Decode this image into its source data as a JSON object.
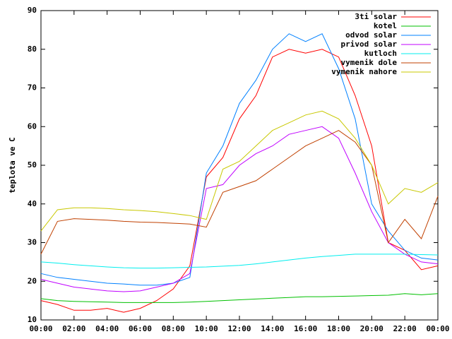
{
  "chart_data": {
    "type": "line",
    "ylabel": "teplota ve C",
    "x": [
      0,
      1,
      2,
      3,
      4,
      5,
      6,
      7,
      8,
      9,
      10,
      11,
      12,
      13,
      14,
      15,
      16,
      17,
      18,
      19,
      20,
      21,
      22,
      23,
      24
    ],
    "xlim": [
      0,
      24
    ],
    "xticks": [
      {
        "value": 0,
        "label": "00:00"
      },
      {
        "value": 2,
        "label": "02:00"
      },
      {
        "value": 4,
        "label": "04:00"
      },
      {
        "value": 6,
        "label": "06:00"
      },
      {
        "value": 8,
        "label": "08:00"
      },
      {
        "value": 10,
        "label": "10:00"
      },
      {
        "value": 12,
        "label": "12:00"
      },
      {
        "value": 14,
        "label": "14:00"
      },
      {
        "value": 16,
        "label": "16:00"
      },
      {
        "value": 18,
        "label": "18:00"
      },
      {
        "value": 20,
        "label": "20:00"
      },
      {
        "value": 22,
        "label": "22:00"
      },
      {
        "value": 24,
        "label": "00:00"
      }
    ],
    "ylim": [
      10,
      90
    ],
    "yticks": [
      10,
      20,
      30,
      40,
      50,
      60,
      70,
      80,
      90
    ],
    "legend": "top right",
    "series": [
      {
        "name": "3ti solar",
        "color": "#ff0000",
        "values": [
          15,
          14,
          12.5,
          12.5,
          13,
          12,
          13,
          15,
          18,
          24,
          47,
          52,
          62,
          68,
          78,
          80,
          79,
          80,
          78,
          68,
          55,
          30,
          28,
          23,
          24
        ]
      },
      {
        "name": "kotel",
        "color": "#00c000",
        "values": [
          15.5,
          15,
          14.8,
          14.7,
          14.6,
          14.5,
          14.5,
          14.5,
          14.5,
          14.6,
          14.8,
          15,
          15.2,
          15.4,
          15.6,
          15.8,
          16,
          16,
          16.1,
          16.2,
          16.3,
          16.4,
          16.8,
          16.5,
          16.8
        ]
      },
      {
        "name": "odvod solar",
        "color": "#0080ff",
        "values": [
          22,
          21,
          20.5,
          20,
          19.5,
          19.3,
          19,
          19,
          19.5,
          21,
          48,
          55,
          66,
          72,
          80,
          84,
          82,
          84,
          75,
          62,
          40,
          33,
          28,
          26,
          25.5
        ]
      },
      {
        "name": "privod solar",
        "color": "#c000ff",
        "values": [
          20.5,
          19.5,
          18.5,
          18,
          17.5,
          17.3,
          17.5,
          18.5,
          19.5,
          22,
          44,
          45,
          50,
          53,
          55,
          58,
          59,
          60,
          57,
          48,
          38,
          30,
          27,
          25,
          24.5
        ]
      },
      {
        "name": "kutloch",
        "color": "#00eeee",
        "values": [
          25,
          24.7,
          24.3,
          24,
          23.7,
          23.5,
          23.4,
          23.4,
          23.5,
          23.6,
          23.7,
          23.9,
          24.1,
          24.5,
          25,
          25.5,
          26,
          26.4,
          26.7,
          27,
          27,
          27,
          27,
          26.9,
          26.8
        ]
      },
      {
        "name": "vymenik dole",
        "color": "#c04000",
        "values": [
          27,
          35.5,
          36.2,
          36,
          35.8,
          35.5,
          35.3,
          35.2,
          35,
          34.8,
          34,
          43,
          44.5,
          46,
          49,
          52,
          55,
          57,
          59,
          56,
          50,
          30,
          36,
          31,
          42
        ]
      },
      {
        "name": "vymenik nahore",
        "color": "#c8c800",
        "values": [
          33,
          38.5,
          39,
          39,
          38.8,
          38.5,
          38.3,
          38,
          37.5,
          37,
          36,
          49,
          51,
          55,
          59,
          61,
          63,
          64,
          62,
          57,
          50,
          40,
          44,
          43,
          45.5
        ]
      }
    ]
  }
}
